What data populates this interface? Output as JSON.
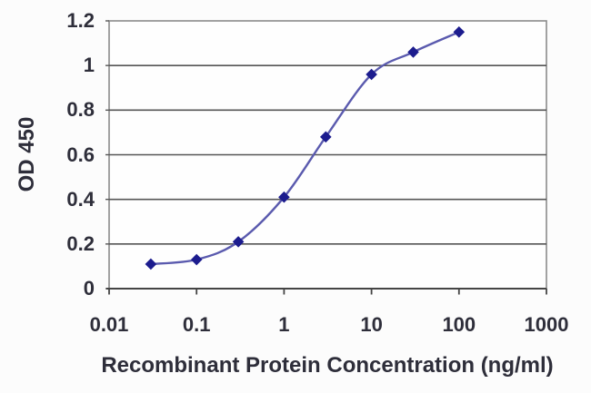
{
  "figure": {
    "background": "#fcfcfc",
    "plot_background": "#fefefe"
  },
  "chart_data": {
    "type": "line",
    "line_style": "smooth",
    "marker": "diamond",
    "x_scale": "log",
    "x": [
      0.03,
      0.1,
      0.3,
      1,
      3,
      10,
      30,
      100
    ],
    "y": [
      0.11,
      0.13,
      0.21,
      0.41,
      0.68,
      0.96,
      1.06,
      1.15
    ],
    "xlabel": "Recombinant Protein Concentration (ng/ml)",
    "ylabel": "OD 450",
    "xlim": [
      0.01,
      1000
    ],
    "ylim": [
      0,
      1.2
    ],
    "x_tick_values": [
      0.01,
      0.1,
      1,
      10,
      100,
      1000
    ],
    "x_tick_labels": [
      "0.01",
      "0.1",
      "1",
      "10",
      "100",
      "1000"
    ],
    "y_tick_values": [
      0,
      0.2,
      0.4,
      0.6,
      0.8,
      1,
      1.2
    ],
    "y_tick_labels": [
      "0",
      "0.2",
      "0.4",
      "0.6",
      "0.8",
      "1",
      "1.2"
    ],
    "grid": "horizontal-only",
    "legend": "none",
    "colors": {
      "line": "#5a5aae",
      "marker": "#1c1c8e",
      "gridline": "#565656",
      "axis": "#454545",
      "border": "#8b8b8b",
      "text": "#2e2e3a"
    }
  }
}
